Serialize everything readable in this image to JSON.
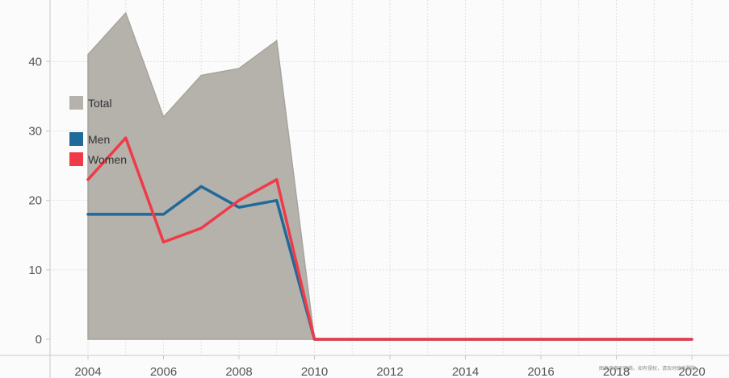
{
  "chart_data": {
    "type": "area",
    "title": "",
    "xlabel": "",
    "ylabel": "",
    "x": [
      2004,
      2005,
      2006,
      2007,
      2008,
      2009,
      2010,
      2011,
      2012,
      2013,
      2014,
      2015,
      2016,
      2017,
      2018,
      2019,
      2020
    ],
    "xlim": [
      2004,
      2020
    ],
    "ylim": [
      0,
      47
    ],
    "xticks": [
      2004,
      2006,
      2008,
      2010,
      2012,
      2014,
      2016,
      2018,
      2020
    ],
    "yticks": [
      0,
      10,
      20,
      30,
      40
    ],
    "grid": true,
    "legend_position": "left",
    "series": [
      {
        "name": "Total",
        "kind": "area",
        "color": "#b5b1ab",
        "values": [
          41,
          47,
          32,
          38,
          39,
          43,
          0,
          0,
          0,
          0,
          0,
          0,
          0,
          0,
          0,
          0,
          0
        ]
      },
      {
        "name": "Men",
        "kind": "line",
        "color": "#1f6a99",
        "values": [
          18,
          18,
          18,
          22,
          19,
          20,
          0,
          0,
          0,
          0,
          0,
          0,
          0,
          0,
          0,
          0,
          0
        ]
      },
      {
        "name": "Women",
        "kind": "line",
        "color": "#ef3b48",
        "values": [
          23,
          29,
          14,
          16,
          20,
          23,
          0,
          0,
          0,
          0,
          0,
          0,
          0,
          0,
          0,
          0,
          0
        ]
      }
    ]
  },
  "watermark": "图表来源于网络，如有侵权，请及时联系删除"
}
